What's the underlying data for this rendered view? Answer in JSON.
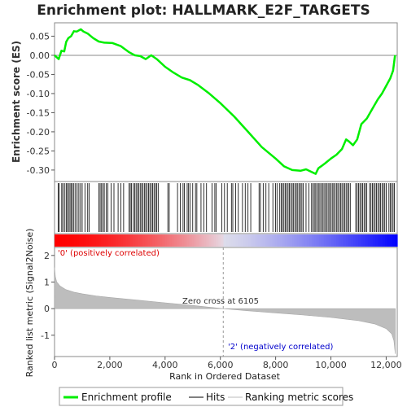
{
  "chart_data": {
    "type": "line",
    "title": "Enrichment plot: HALLMARK_E2F_TARGETS",
    "x_total": 12400,
    "enrichment": {
      "ylabel": "Enrichment score (ES)",
      "ylim": [
        -0.33,
        0.085
      ],
      "y_ticks": [
        0.05,
        0.0,
        -0.05,
        -0.1,
        -0.15,
        -0.2,
        -0.25,
        -0.3
      ],
      "y_tick_labels": [
        "0.05",
        "0.00",
        "-0.05",
        "-0.10",
        "-0.15",
        "-0.20",
        "-0.25",
        "-0.30"
      ],
      "series": {
        "name": "Enrichment profile",
        "color": "#00ee00",
        "points": [
          [
            0,
            0.0
          ],
          [
            150,
            -0.01
          ],
          [
            250,
            0.012
          ],
          [
            350,
            0.01
          ],
          [
            420,
            0.035
          ],
          [
            500,
            0.045
          ],
          [
            600,
            0.05
          ],
          [
            700,
            0.063
          ],
          [
            800,
            0.062
          ],
          [
            950,
            0.068
          ],
          [
            1050,
            0.062
          ],
          [
            1200,
            0.057
          ],
          [
            1400,
            0.045
          ],
          [
            1600,
            0.036
          ],
          [
            1800,
            0.033
          ],
          [
            2100,
            0.032
          ],
          [
            2400,
            0.024
          ],
          [
            2700,
            0.008
          ],
          [
            2900,
            0.0
          ],
          [
            3100,
            -0.002
          ],
          [
            3300,
            -0.01
          ],
          [
            3500,
            0.0
          ],
          [
            3700,
            -0.01
          ],
          [
            4000,
            -0.03
          ],
          [
            4300,
            -0.045
          ],
          [
            4600,
            -0.058
          ],
          [
            4900,
            -0.065
          ],
          [
            5200,
            -0.078
          ],
          [
            5600,
            -0.1
          ],
          [
            6000,
            -0.125
          ],
          [
            6500,
            -0.16
          ],
          [
            7000,
            -0.2
          ],
          [
            7500,
            -0.24
          ],
          [
            8000,
            -0.27
          ],
          [
            8300,
            -0.29
          ],
          [
            8600,
            -0.3
          ],
          [
            8900,
            -0.302
          ],
          [
            9100,
            -0.298
          ],
          [
            9300,
            -0.305
          ],
          [
            9450,
            -0.31
          ],
          [
            9550,
            -0.295
          ],
          [
            9650,
            -0.29
          ],
          [
            9800,
            -0.282
          ],
          [
            10000,
            -0.27
          ],
          [
            10200,
            -0.26
          ],
          [
            10400,
            -0.245
          ],
          [
            10550,
            -0.22
          ],
          [
            10650,
            -0.225
          ],
          [
            10800,
            -0.235
          ],
          [
            10950,
            -0.22
          ],
          [
            11100,
            -0.18
          ],
          [
            11300,
            -0.165
          ],
          [
            11500,
            -0.14
          ],
          [
            11700,
            -0.115
          ],
          [
            11850,
            -0.1
          ],
          [
            12000,
            -0.08
          ],
          [
            12150,
            -0.06
          ],
          [
            12250,
            -0.04
          ],
          [
            12320,
            0.0
          ]
        ]
      }
    },
    "hits": {
      "name": "Hits",
      "positions": [
        130,
        170,
        260,
        300,
        360,
        420,
        460,
        520,
        560,
        600,
        650,
        700,
        760,
        820,
        880,
        940,
        1000,
        1100,
        1200,
        1250,
        1600,
        1650,
        1700,
        1750,
        1800,
        1870,
        1930,
        2050,
        2150,
        2300,
        2400,
        2500,
        2700,
        2740,
        2780,
        2850,
        2900,
        2950,
        3000,
        3050,
        3100,
        3150,
        3200,
        3250,
        3300,
        3350,
        3400,
        3450,
        3500,
        3550,
        3600,
        3650,
        3700,
        3750,
        4100,
        4150,
        4450,
        4550,
        4650,
        4700,
        4800,
        4850,
        4900,
        5000,
        5100,
        5150,
        5300,
        5400,
        5500,
        5700,
        5800,
        5850,
        6050,
        6150,
        6250,
        6400,
        6450,
        6550,
        6650,
        6800,
        6900,
        7000,
        7100,
        7400,
        7450,
        7550,
        7650,
        7750,
        7900,
        8000,
        8050,
        8150,
        8200,
        8250,
        8300,
        8350,
        8400,
        8450,
        8500,
        8550,
        8600,
        8650,
        8700,
        8750,
        8800,
        8850,
        8900,
        8950,
        9000,
        9100,
        9200,
        9300,
        9350,
        9400,
        9450,
        9500,
        9550,
        9600,
        9650,
        9700,
        9750,
        9800,
        9850,
        9900,
        9950,
        10000,
        10050,
        10100,
        10150,
        10200,
        10250,
        10300,
        10350,
        10400,
        10450,
        10500,
        10550,
        10600,
        10650,
        10700,
        10900,
        10950,
        11000,
        11050,
        11100,
        11150,
        11200,
        11250,
        11300,
        11400,
        11450,
        11500,
        11550,
        11600,
        11650,
        11700,
        11750,
        11800,
        11850,
        11900,
        11950,
        12000,
        12100,
        12150,
        12200,
        12250,
        12300
      ]
    },
    "metric": {
      "ylabel": "Ranked list metric (Signal2Noise)",
      "xlabel": "Rank in Ordered Dataset",
      "ylim": [
        -1.8,
        2.3
      ],
      "y_ticks": [
        2,
        1,
        0,
        -1
      ],
      "y_tick_labels": [
        "2",
        "1",
        "0",
        "-1"
      ],
      "x_ticks": [
        0,
        2000,
        4000,
        6000,
        8000,
        10000,
        12000
      ],
      "x_tick_labels": [
        "0",
        "2,000",
        "4,000",
        "6,000",
        "8,000",
        "10,000",
        "12,000"
      ],
      "zero_cross": 6105,
      "zero_cross_label": "Zero cross at 6105",
      "positive_label": "'0' (positively correlated)",
      "negative_label": "'2' (negatively correlated)",
      "positive_color": "#ff0000",
      "negative_color": "#0000ff",
      "name": "Ranking metric scores",
      "points": [
        [
          0,
          1.55
        ],
        [
          30,
          1.2
        ],
        [
          80,
          1.0
        ],
        [
          200,
          0.85
        ],
        [
          400,
          0.72
        ],
        [
          700,
          0.62
        ],
        [
          1000,
          0.56
        ],
        [
          1500,
          0.48
        ],
        [
          2000,
          0.42
        ],
        [
          3000,
          0.32
        ],
        [
          4000,
          0.22
        ],
        [
          5000,
          0.12
        ],
        [
          6105,
          0.0
        ],
        [
          7000,
          -0.08
        ],
        [
          8000,
          -0.16
        ],
        [
          9000,
          -0.24
        ],
        [
          10000,
          -0.33
        ],
        [
          11000,
          -0.45
        ],
        [
          11600,
          -0.58
        ],
        [
          12000,
          -0.75
        ],
        [
          12200,
          -0.95
        ],
        [
          12280,
          -1.2
        ],
        [
          12330,
          -1.7
        ]
      ]
    },
    "legend": {
      "items": [
        {
          "label": "Enrichment profile",
          "color": "#00ee00"
        },
        {
          "label": "Hits",
          "color": "#000000"
        },
        {
          "label": "Ranking metric scores",
          "color": "#bbbbbb"
        }
      ]
    }
  }
}
